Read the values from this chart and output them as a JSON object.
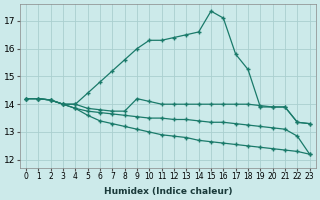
{
  "xlabel": "Humidex (Indice chaleur)",
  "background_color": "#cceaea",
  "grid_color": "#aacfcf",
  "line_color": "#1a7a6a",
  "x_ticks": [
    0,
    1,
    2,
    3,
    4,
    5,
    6,
    7,
    8,
    9,
    10,
    11,
    12,
    13,
    14,
    15,
    16,
    17,
    18,
    19,
    20,
    21,
    22,
    23
  ],
  "y_ticks": [
    12,
    13,
    14,
    15,
    16,
    17
  ],
  "ylim": [
    11.7,
    17.6
  ],
  "xlim": [
    -0.5,
    23.5
  ],
  "line1_x": [
    0,
    1,
    2,
    3,
    4,
    5,
    6,
    7,
    8,
    9,
    10,
    11,
    12,
    13,
    14,
    15,
    16,
    17,
    18,
    19,
    20,
    21,
    22,
    23
  ],
  "line1_y": [
    14.2,
    14.2,
    14.15,
    14.0,
    14.0,
    14.4,
    14.8,
    15.2,
    15.6,
    16.0,
    16.3,
    16.3,
    16.4,
    16.5,
    16.6,
    17.35,
    17.1,
    15.8,
    15.25,
    13.9,
    13.9,
    13.9,
    13.35,
    13.3
  ],
  "line2_x": [
    0,
    1,
    2,
    3,
    4,
    5,
    6,
    7,
    8,
    9,
    10,
    11,
    12,
    13,
    14,
    15,
    16,
    17,
    18,
    19,
    20,
    21,
    22,
    23
  ],
  "line2_y": [
    14.2,
    14.2,
    14.15,
    14.0,
    14.0,
    13.85,
    13.8,
    13.75,
    13.75,
    14.2,
    14.1,
    14.0,
    14.0,
    14.0,
    14.0,
    14.0,
    14.0,
    14.0,
    14.0,
    13.95,
    13.9,
    13.9,
    13.35,
    13.3
  ],
  "line3_x": [
    0,
    1,
    2,
    3,
    4,
    5,
    6,
    7,
    8,
    9,
    10,
    11,
    12,
    13,
    14,
    15,
    16,
    17,
    18,
    19,
    20,
    21,
    22,
    23
  ],
  "line3_y": [
    14.2,
    14.2,
    14.15,
    14.0,
    13.85,
    13.75,
    13.7,
    13.65,
    13.6,
    13.55,
    13.5,
    13.5,
    13.45,
    13.45,
    13.4,
    13.35,
    13.35,
    13.3,
    13.25,
    13.2,
    13.15,
    13.1,
    12.85,
    12.2
  ],
  "line4_x": [
    0,
    1,
    2,
    3,
    4,
    5,
    6,
    7,
    8,
    9,
    10,
    11,
    12,
    13,
    14,
    15,
    16,
    17,
    18,
    19,
    20,
    21,
    22,
    23
  ],
  "line4_y": [
    14.2,
    14.2,
    14.15,
    14.0,
    13.85,
    13.6,
    13.4,
    13.3,
    13.2,
    13.1,
    13.0,
    12.9,
    12.85,
    12.8,
    12.7,
    12.65,
    12.6,
    12.55,
    12.5,
    12.45,
    12.4,
    12.35,
    12.3,
    12.2
  ]
}
